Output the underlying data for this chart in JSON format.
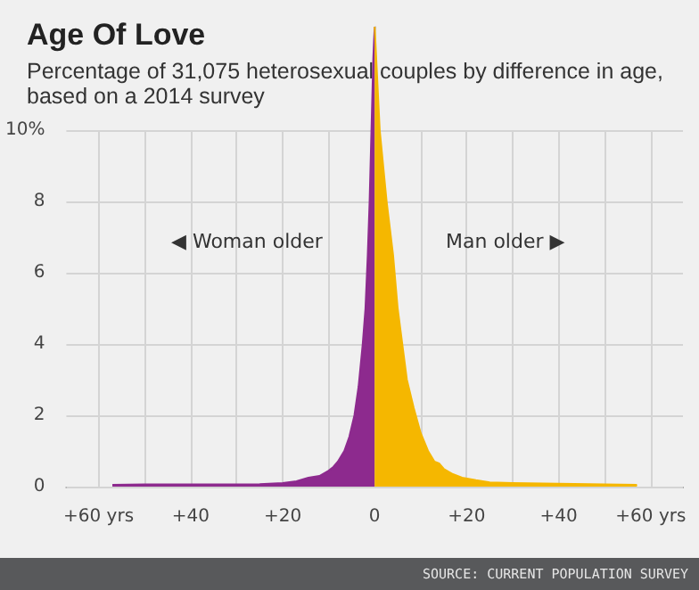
{
  "chart_data": {
    "type": "area",
    "title": "Age Of Love",
    "subtitle": "Percentage of 31,075 heterosexual couples by difference in age, based on a 2014 survey",
    "annotations": [
      "◀ Woman older",
      "Man older ▶",
      "SOURCE: CURRENT POPULATION SURVEY"
    ],
    "series": [
      {
        "color": "#8d2a8e",
        "x": [
          -57,
          -50,
          -40,
          -30,
          -25,
          -20,
          -17,
          -14.4,
          -12,
          -10,
          -9,
          -8,
          -6.6,
          -5.5,
          -4.4,
          -3.5,
          -2.6,
          -2,
          -1.5,
          -1.1,
          -0.7,
          -0.3,
          0
        ],
        "values": [
          0.05,
          0.06,
          0.06,
          0.06,
          0.07,
          0.1,
          0.15,
          0.25,
          0.3,
          0.45,
          0.55,
          0.7,
          1,
          1.4,
          2,
          2.8,
          4,
          5,
          6.5,
          8,
          10,
          12,
          12.9
        ]
      },
      {
        "color": "#f5b700",
        "x": [
          0,
          1.1,
          2.6,
          4,
          5,
          6,
          7,
          8.5,
          10,
          11.6,
          13,
          14,
          15,
          17,
          19,
          22,
          25,
          30,
          40,
          50,
          57
        ],
        "values": [
          12.9,
          10,
          8,
          6.5,
          5,
          4,
          3,
          2.2,
          1.5,
          1,
          0.7,
          0.65,
          0.5,
          0.35,
          0.25,
          0.18,
          0.12,
          0.1,
          0.08,
          0.06,
          0.05
        ]
      }
    ],
    "xlim": [
      -67,
      67
    ],
    "xticks": [
      {
        "value": -60,
        "label": "+60 yrs"
      },
      {
        "value": -50,
        "label": null
      },
      {
        "value": -40,
        "label": "+40"
      },
      {
        "value": -30,
        "label": null
      },
      {
        "value": -20,
        "label": "+20"
      },
      {
        "value": -10,
        "label": null
      },
      0,
      {
        "value": 10,
        "label": null
      },
      {
        "value": 20,
        "label": "+20"
      },
      {
        "value": 30,
        "label": null
      },
      {
        "value": 40,
        "label": "+40"
      },
      {
        "value": 50,
        "label": null
      },
      {
        "value": 60,
        "label": "+60 yrs"
      }
    ],
    "yticks": [
      0,
      2,
      4,
      6,
      8,
      {
        "value": 10,
        "label": "10%"
      }
    ],
    "ylim": [
      0,
      12.9
    ],
    "grid": true,
    "marker": "none"
  }
}
